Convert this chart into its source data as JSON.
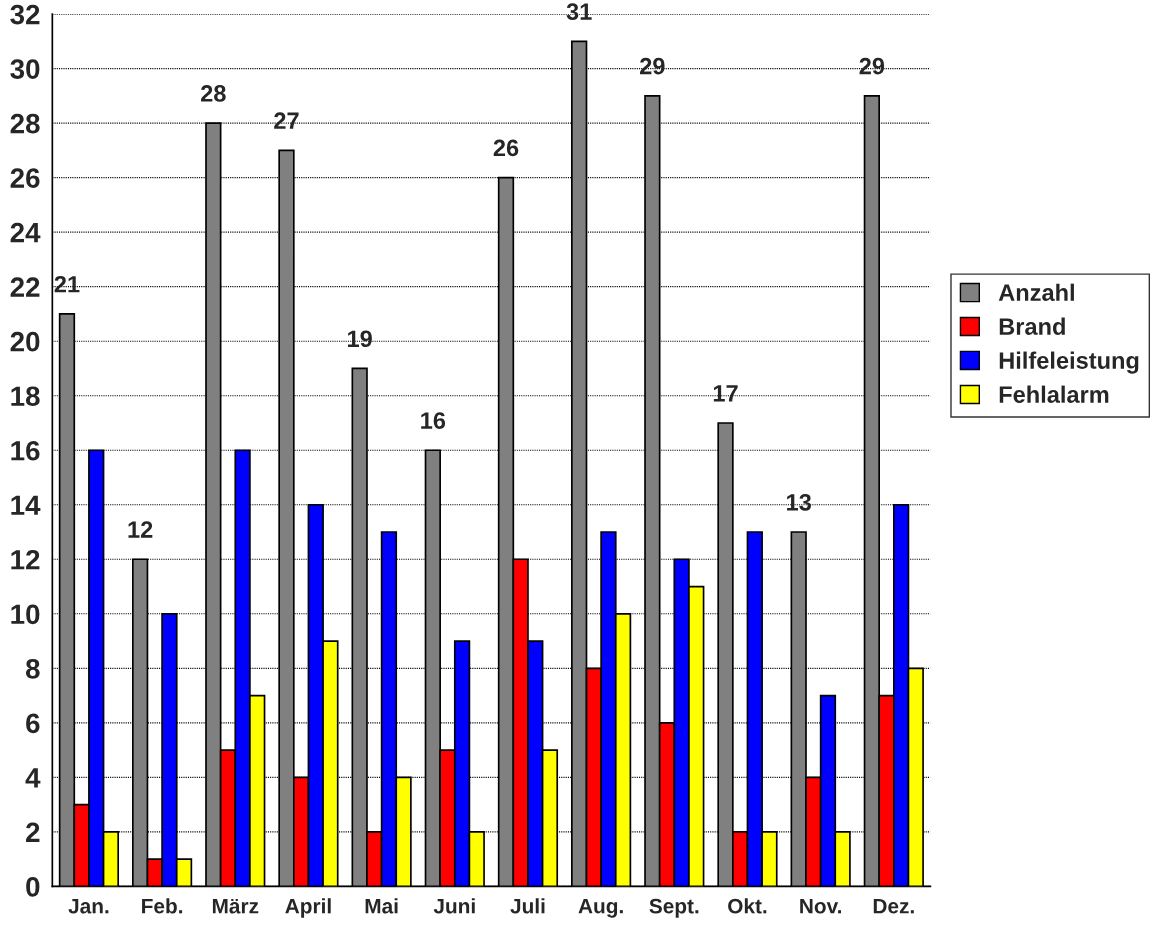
{
  "chart_data": {
    "type": "bar",
    "categories": [
      "Jan.",
      "Feb.",
      "März",
      "April",
      "Mai",
      "Juni",
      "Juli",
      "Aug.",
      "Sept.",
      "Okt.",
      "Nov.",
      "Dez."
    ],
    "series": [
      {
        "name": "Anzahl",
        "color": "#808080",
        "values": [
          21,
          12,
          28,
          27,
          19,
          16,
          26,
          31,
          29,
          17,
          13,
          29
        ],
        "value_labels": [
          "21",
          "12",
          "28",
          "27",
          "19",
          "16",
          "26",
          "31",
          "29",
          "17",
          "13",
          "29"
        ]
      },
      {
        "name": "Brand",
        "color": "#ff0000",
        "values": [
          3,
          1,
          5,
          4,
          2,
          5,
          12,
          8,
          6,
          2,
          4,
          7
        ]
      },
      {
        "name": "Hilfeleistung",
        "color": "#0000ff",
        "values": [
          16,
          10,
          16,
          14,
          13,
          9,
          9,
          13,
          12,
          13,
          7,
          14
        ]
      },
      {
        "name": "Fehlalarm",
        "color": "#ffff00",
        "values": [
          2,
          1,
          7,
          9,
          4,
          2,
          5,
          10,
          11,
          2,
          2,
          8
        ]
      }
    ],
    "ylim": [
      0,
      32
    ],
    "yticks": [
      0,
      2,
      4,
      6,
      8,
      10,
      12,
      14,
      16,
      18,
      20,
      22,
      24,
      26,
      28,
      30,
      32
    ],
    "grid": "y",
    "legend": "right"
  }
}
